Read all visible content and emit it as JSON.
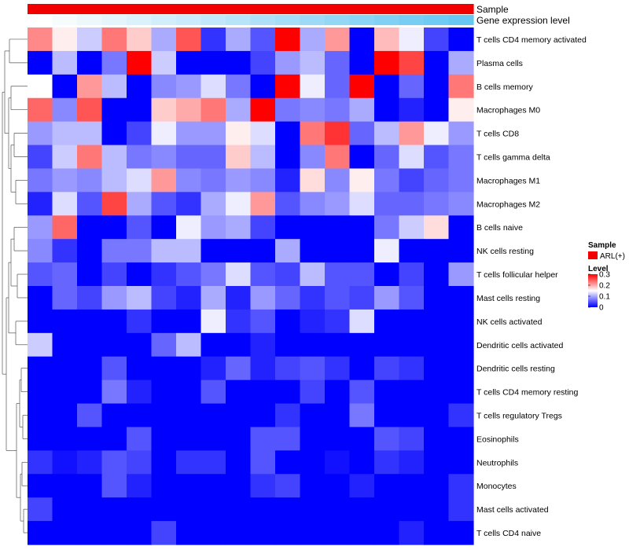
{
  "chart_data": {
    "type": "heatmap",
    "title": "",
    "rows": [
      "T cells CD4 memory activated",
      "Plasma cells",
      "B cells memory",
      "Macrophages M0",
      "T cells CD8",
      "T cells gamma delta",
      "Macrophages M1",
      "Macrophages M2",
      "B cells naive",
      "NK cells resting",
      "T cells follicular helper",
      "Mast cells resting",
      "NK cells activated",
      "Dendritic cells activated",
      "Dendritic cells resting",
      "T cells CD4 memory resting",
      "T cells regulatory  Tregs",
      "Eosinophils",
      "Neutrophils",
      "Monocytes",
      "Mast cells activated",
      "T cells CD4 naive"
    ],
    "n_columns": 18,
    "values": [
      [
        0.22,
        0.16,
        0.12,
        0.23,
        0.18,
        0.1,
        0.25,
        0.03,
        0.1,
        0.05,
        0.3,
        0.1,
        0.21,
        0.0,
        0.19,
        0.14,
        0.04,
        0.0
      ],
      [
        0.0,
        0.11,
        0.0,
        0.07,
        0.3,
        0.12,
        0.0,
        0.0,
        0.0,
        0.04,
        0.09,
        0.11,
        0.06,
        0.0,
        0.3,
        0.26,
        0.0,
        0.1
      ],
      [
        0.15,
        0.0,
        0.21,
        0.11,
        0.0,
        0.08,
        0.09,
        0.13,
        0.07,
        0.0,
        0.3,
        0.14,
        0.06,
        0.3,
        0.0,
        0.06,
        0.0,
        0.23
      ],
      [
        0.24,
        0.08,
        0.25,
        0.0,
        0.0,
        0.18,
        0.2,
        0.23,
        0.1,
        0.3,
        0.07,
        0.08,
        0.07,
        0.1,
        0.0,
        0.02,
        0.0,
        0.16
      ],
      [
        0.09,
        0.11,
        0.11,
        0.0,
        0.04,
        0.14,
        0.09,
        0.09,
        0.16,
        0.13,
        0.0,
        0.23,
        0.27,
        0.06,
        0.11,
        0.21,
        0.14,
        0.09
      ],
      [
        0.04,
        0.12,
        0.23,
        0.11,
        0.07,
        0.08,
        0.06,
        0.06,
        0.18,
        0.11,
        0.0,
        0.08,
        0.23,
        0.0,
        0.06,
        0.13,
        0.05,
        0.07
      ],
      [
        0.07,
        0.09,
        0.08,
        0.11,
        0.13,
        0.21,
        0.08,
        0.07,
        0.09,
        0.08,
        0.02,
        0.17,
        0.08,
        0.16,
        0.07,
        0.04,
        0.06,
        0.07
      ],
      [
        0.02,
        0.13,
        0.05,
        0.26,
        0.1,
        0.05,
        0.03,
        0.1,
        0.14,
        0.21,
        0.05,
        0.08,
        0.09,
        0.13,
        0.06,
        0.06,
        0.07,
        0.08
      ],
      [
        0.09,
        0.24,
        0.0,
        0.0,
        0.05,
        0.0,
        0.14,
        0.09,
        0.1,
        0.04,
        0.0,
        0.0,
        0.0,
        0.0,
        0.07,
        0.12,
        0.17,
        0.0
      ],
      [
        0.08,
        0.03,
        0.0,
        0.07,
        0.07,
        0.11,
        0.11,
        0.0,
        0.0,
        0.0,
        0.1,
        0.0,
        0.0,
        0.0,
        0.14,
        0.0,
        0.0,
        0.0
      ],
      [
        0.05,
        0.06,
        0.0,
        0.04,
        0.0,
        0.03,
        0.05,
        0.07,
        0.13,
        0.05,
        0.04,
        0.11,
        0.05,
        0.05,
        0.0,
        0.04,
        0.0,
        0.09
      ],
      [
        0.0,
        0.06,
        0.04,
        0.09,
        0.11,
        0.04,
        0.02,
        0.1,
        0.02,
        0.09,
        0.06,
        0.03,
        0.05,
        0.04,
        0.09,
        0.05,
        0.0,
        0.0
      ],
      [
        0.0,
        0.0,
        0.0,
        0.0,
        0.03,
        0.0,
        0.0,
        0.14,
        0.03,
        0.05,
        0.0,
        0.02,
        0.03,
        0.13,
        0.0,
        0.0,
        0.0,
        0.0
      ],
      [
        0.12,
        0.0,
        0.0,
        0.0,
        0.0,
        0.06,
        0.11,
        0.0,
        0.0,
        0.02,
        0.0,
        0.0,
        0.0,
        0.0,
        0.0,
        0.0,
        0.0,
        0.0
      ],
      [
        0.0,
        0.0,
        0.0,
        0.05,
        0.0,
        0.0,
        0.0,
        0.02,
        0.06,
        0.02,
        0.04,
        0.05,
        0.03,
        0.0,
        0.04,
        0.03,
        0.0,
        0.0
      ],
      [
        0.0,
        0.0,
        0.0,
        0.07,
        0.02,
        0.0,
        0.0,
        0.05,
        0.0,
        0.0,
        0.0,
        0.04,
        0.0,
        0.05,
        0.0,
        0.0,
        0.0,
        0.0
      ],
      [
        0.0,
        0.0,
        0.05,
        0.0,
        0.0,
        0.0,
        0.0,
        0.0,
        0.0,
        0.0,
        0.03,
        0.0,
        0.0,
        0.07,
        0.0,
        0.0,
        0.0,
        0.03
      ],
      [
        0.0,
        0.0,
        0.0,
        0.0,
        0.05,
        0.0,
        0.0,
        0.0,
        0.0,
        0.05,
        0.05,
        0.0,
        0.0,
        0.0,
        0.05,
        0.04,
        0.0,
        0.0
      ],
      [
        0.03,
        0.01,
        0.02,
        0.05,
        0.04,
        0.0,
        0.03,
        0.03,
        0.0,
        0.05,
        0.0,
        0.0,
        0.01,
        0.0,
        0.03,
        0.02,
        0.0,
        0.0
      ],
      [
        0.0,
        0.0,
        0.0,
        0.05,
        0.02,
        0.0,
        0.0,
        0.0,
        0.0,
        0.03,
        0.04,
        0.0,
        0.0,
        0.02,
        0.0,
        0.0,
        0.0,
        0.03
      ],
      [
        0.04,
        0.0,
        0.0,
        0.0,
        0.0,
        0.0,
        0.0,
        0.0,
        0.0,
        0.0,
        0.0,
        0.0,
        0.0,
        0.0,
        0.0,
        0.0,
        0.0,
        0.03
      ],
      [
        0.0,
        0.0,
        0.0,
        0.0,
        0.0,
        0.04,
        0.0,
        0.0,
        0.0,
        0.0,
        0.0,
        0.0,
        0.0,
        0.0,
        0.0,
        0.02,
        0.0,
        0.0
      ]
    ],
    "column_annotations": [
      {
        "name": "Sample",
        "colors": [
          "#f20000",
          "#f20000",
          "#f20000",
          "#f20000",
          "#f20000",
          "#f20000",
          "#f20000",
          "#f20000",
          "#f20000",
          "#f20000",
          "#f20000",
          "#f20000",
          "#f20000",
          "#f20000",
          "#f20000",
          "#f20000",
          "#f20000",
          "#f20000"
        ]
      },
      {
        "name": "Gene expression level",
        "colors": [
          "#ffffff",
          "#f6fbfe",
          "#edf8fd",
          "#e4f5fd",
          "#dbf1fc",
          "#d2eefb",
          "#c9ebfb",
          "#c0e8fa",
          "#b7e4f9",
          "#aee1f9",
          "#a5def8",
          "#9cdaf7",
          "#93d7f7",
          "#8ad4f6",
          "#81d1f5",
          "#78cdf5",
          "#6fcaf4",
          "#66c7f3"
        ]
      }
    ],
    "legend": {
      "sample_title": "Sample",
      "sample_label": "ARL(+)",
      "sample_color": "#f20000",
      "level_title": "Level",
      "level_ticks": [
        "0.3",
        "0.2",
        "0.1",
        "0"
      ],
      "level_range": [
        0,
        0.3
      ]
    },
    "colorscale": [
      "#0000ff",
      "#ffffff",
      "#ff0000"
    ]
  }
}
